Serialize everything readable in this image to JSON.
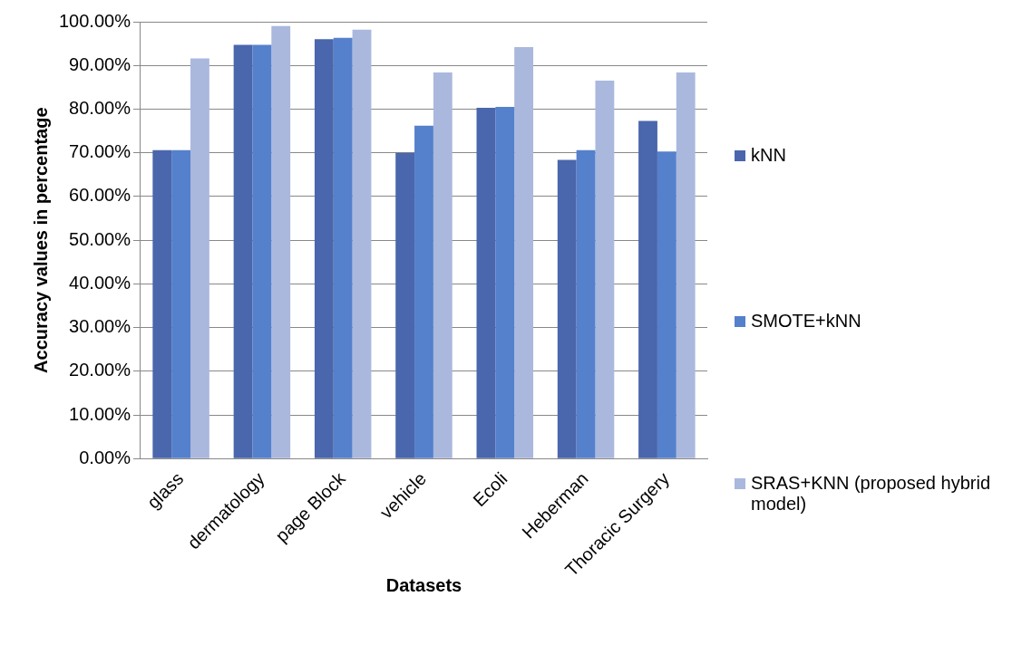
{
  "chart_data": {
    "type": "bar",
    "xlabel": "Datasets",
    "ylabel": "Accuracy values in percentage",
    "categories": [
      "glass",
      "dermatology",
      "page Block",
      "vehicle",
      "Ecoli",
      "Heberman",
      "Thoracic Surgery"
    ],
    "series": [
      {
        "name": "kNN",
        "color": "#4a66ac",
        "values": [
          70.6,
          94.7,
          96.0,
          70.0,
          80.3,
          68.4,
          77.3
        ]
      },
      {
        "name": "SMOTE+kNN",
        "color": "#5580cc",
        "values": [
          70.6,
          94.7,
          96.3,
          76.2,
          80.5,
          70.6,
          70.3
        ]
      },
      {
        "name": "SRAS+KNN (proposed hybrid model)",
        "color": "#aab8de",
        "values": [
          91.6,
          99.0,
          98.2,
          88.4,
          94.2,
          86.5,
          88.4
        ]
      }
    ],
    "ylim": [
      0,
      100
    ],
    "yticks": [
      {
        "value": 0,
        "label": "0.00%"
      },
      {
        "value": 10,
        "label": "10.00%"
      },
      {
        "value": 20,
        "label": "20.00%"
      },
      {
        "value": 30,
        "label": "30.00%"
      },
      {
        "value": 40,
        "label": "40.00%"
      },
      {
        "value": 50,
        "label": "50.00%"
      },
      {
        "value": 60,
        "label": "60.00%"
      },
      {
        "value": 70,
        "label": "70.00%"
      },
      {
        "value": 80,
        "label": "80.00%"
      },
      {
        "value": 90,
        "label": "90.00%"
      },
      {
        "value": 100,
        "label": "100.00%"
      }
    ],
    "grid": "y",
    "legend": "right"
  }
}
